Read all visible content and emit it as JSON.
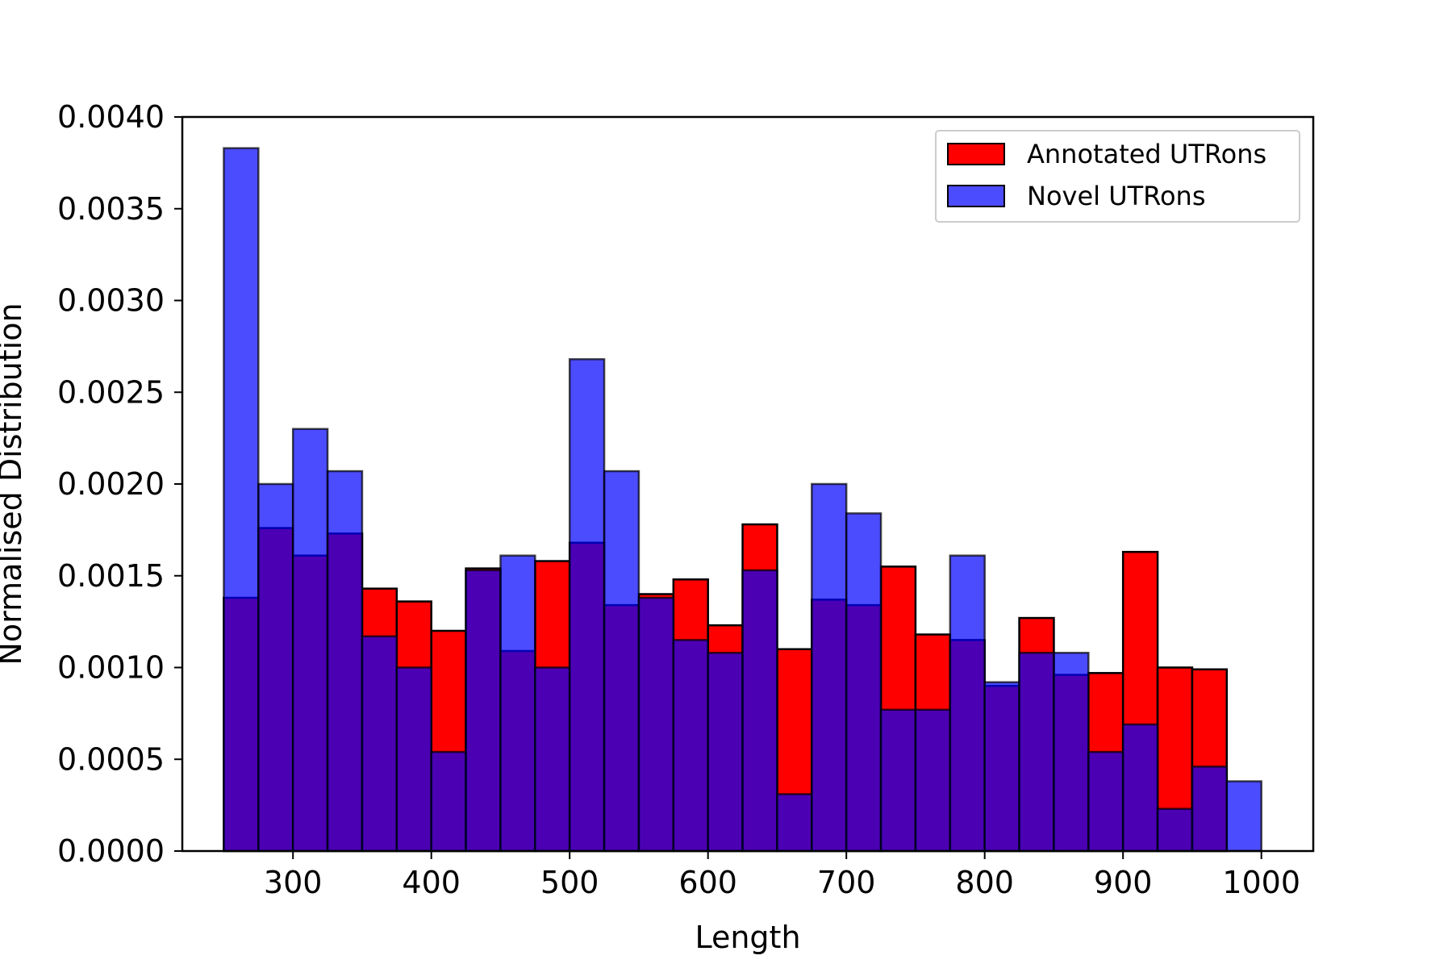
{
  "chart_data": {
    "type": "bar",
    "xlabel": "Length",
    "ylabel": "Normalised Distribution",
    "xlim": [
      220,
      1037.5
    ],
    "ylim": [
      0,
      0.004
    ],
    "x_ticks": [
      300,
      400,
      500,
      600,
      700,
      800,
      900,
      1000
    ],
    "x_tick_labels": [
      "300",
      "400",
      "500",
      "600",
      "700",
      "800",
      "900",
      "1000"
    ],
    "y_ticks": [
      0,
      0.0005,
      0.001,
      0.0015,
      0.002,
      0.0025,
      0.003,
      0.0035,
      0.004
    ],
    "y_tick_labels": [
      "0.0000",
      "0.0005",
      "0.0010",
      "0.0015",
      "0.0020",
      "0.0025",
      "0.0030",
      "0.0035",
      "0.0040"
    ],
    "grid": false,
    "legend_position": "top-right",
    "bin_edges": [
      250,
      275,
      300,
      325,
      350,
      375,
      400,
      425,
      450,
      475,
      500,
      525,
      550,
      575,
      600,
      625,
      650,
      675,
      700,
      725,
      750,
      775,
      800,
      825,
      850,
      875,
      900,
      925,
      950,
      975,
      1000
    ],
    "series": [
      {
        "name": "Annotated UTRons",
        "color": "#ff0000",
        "opacity": 1.0,
        "values": [
          0.00138,
          0.00176,
          0.00161,
          0.00173,
          0.00143,
          0.00136,
          0.0012,
          0.00154,
          0.00109,
          0.00158,
          0.00168,
          0.00134,
          0.0014,
          0.00148,
          0.00123,
          0.00178,
          0.0011,
          0.00137,
          0.00134,
          0.00155,
          0.00118,
          0.00115,
          0.0009,
          0.00127,
          0.00096,
          0.00097,
          0.00163,
          0.001,
          0.00099,
          0
        ]
      },
      {
        "name": "Novel UTRons",
        "color": "#0000ff",
        "opacity": 0.7,
        "values": [
          0.00383,
          0.002,
          0.0023,
          0.00207,
          0.00117,
          0.001,
          0.00054,
          0.00153,
          0.00161,
          0.001,
          0.00268,
          0.00207,
          0.00138,
          0.00115,
          0.00108,
          0.00153,
          0.00031,
          0.002,
          0.00184,
          0.00077,
          0.00077,
          0.00161,
          0.00092,
          0.00108,
          0.00108,
          0.00054,
          0.00069,
          0.00023,
          0.00046,
          0.00038
        ]
      }
    ]
  }
}
